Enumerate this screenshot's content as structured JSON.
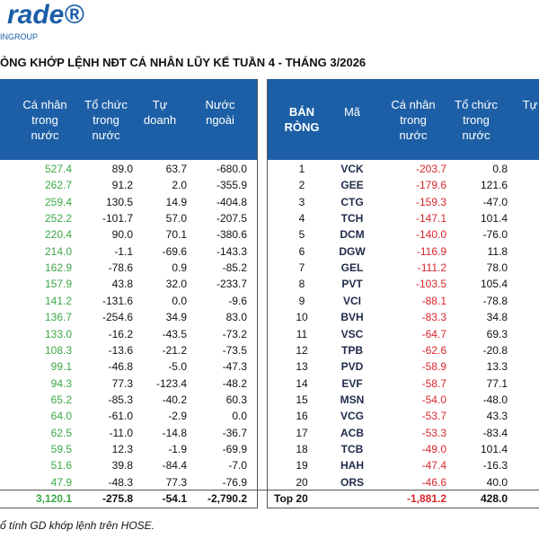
{
  "header": {
    "logo": "rade®",
    "logo_sub": "INGROUP"
  },
  "title": "ÒNG KHỚP LỆNH NĐT CÁ NHÂN LŨY KẾ TUẦN 4 - THÁNG 3/2026",
  "left_table": {
    "columns": [
      "Cá nhân trong nước",
      "Tổ chức trong nước",
      "Tự doanh",
      "Nước ngoài"
    ],
    "rows": [
      [
        "527.4",
        "89.0",
        "63.7",
        "-680.0"
      ],
      [
        "262.7",
        "91.2",
        "2.0",
        "-355.9"
      ],
      [
        "259.4",
        "130.5",
        "14.9",
        "-404.8"
      ],
      [
        "252.2",
        "-101.7",
        "57.0",
        "-207.5"
      ],
      [
        "220.4",
        "90.0",
        "70.1",
        "-380.6"
      ],
      [
        "214.0",
        "-1.1",
        "-69.6",
        "-143.3"
      ],
      [
        "162.9",
        "-78.6",
        "0.9",
        "-85.2"
      ],
      [
        "157.9",
        "43.8",
        "32.0",
        "-233.7"
      ],
      [
        "141.2",
        "-131.6",
        "0.0",
        "-9.6"
      ],
      [
        "136.7",
        "-254.6",
        "34.9",
        "83.0"
      ],
      [
        "133.0",
        "-16.2",
        "-43.5",
        "-73.2"
      ],
      [
        "108.3",
        "-13.6",
        "-21.2",
        "-73.5"
      ],
      [
        "99.1",
        "-46.8",
        "-5.0",
        "-47.3"
      ],
      [
        "94.3",
        "77.3",
        "-123.4",
        "-48.2"
      ],
      [
        "65.2",
        "-85.3",
        "-40.2",
        "60.3"
      ],
      [
        "64.0",
        "-61.0",
        "-2.9",
        "0.0"
      ],
      [
        "62.5",
        "-11.0",
        "-14.8",
        "-36.7"
      ],
      [
        "59.5",
        "12.3",
        "-1.9",
        "-69.9"
      ],
      [
        "51.6",
        "39.8",
        "-84.4",
        "-7.0"
      ],
      [
        "47.9",
        "-48.3",
        "77.3",
        "-76.9"
      ]
    ],
    "total": [
      "3,120.1",
      "-275.8",
      "-54.1",
      "-2,790.2"
    ]
  },
  "right_table": {
    "columns": [
      "BÁN RÒNG",
      "Mã",
      "Cá nhân trong nước",
      "Tổ chức trong nước",
      "Tự"
    ],
    "rows": [
      [
        "1",
        "VCK",
        "-203.7",
        "0.8"
      ],
      [
        "2",
        "GEE",
        "-179.6",
        "121.6"
      ],
      [
        "3",
        "CTG",
        "-159.3",
        "-47.0"
      ],
      [
        "4",
        "TCH",
        "-147.1",
        "101.4"
      ],
      [
        "5",
        "DCM",
        "-140.0",
        "-76.0"
      ],
      [
        "6",
        "DGW",
        "-116.9",
        "11.8"
      ],
      [
        "7",
        "GEL",
        "-111.2",
        "78.0"
      ],
      [
        "8",
        "PVT",
        "-103.5",
        "105.4"
      ],
      [
        "9",
        "VCI",
        "-88.1",
        "-78.8"
      ],
      [
        "10",
        "BVH",
        "-83.3",
        "34.8"
      ],
      [
        "11",
        "VSC",
        "-64.7",
        "69.3"
      ],
      [
        "12",
        "TPB",
        "-62.6",
        "-20.8"
      ],
      [
        "13",
        "PVD",
        "-58.9",
        "13.3"
      ],
      [
        "14",
        "EVF",
        "-58.7",
        "77.1"
      ],
      [
        "15",
        "MSN",
        "-54.0",
        "-48.0"
      ],
      [
        "16",
        "VCG",
        "-53.7",
        "43.3"
      ],
      [
        "17",
        "ACB",
        "-53.3",
        "-83.4"
      ],
      [
        "18",
        "TCB",
        "-49.0",
        "101.4"
      ],
      [
        "19",
        "HAH",
        "-47.4",
        "-16.3"
      ],
      [
        "20",
        "ORS",
        "-46.6",
        "40.0"
      ]
    ],
    "total": [
      "Top 20",
      "-1,881.2",
      "428.0"
    ]
  },
  "footnote": "ổ tính GD khớp lệnh trên HOSE."
}
